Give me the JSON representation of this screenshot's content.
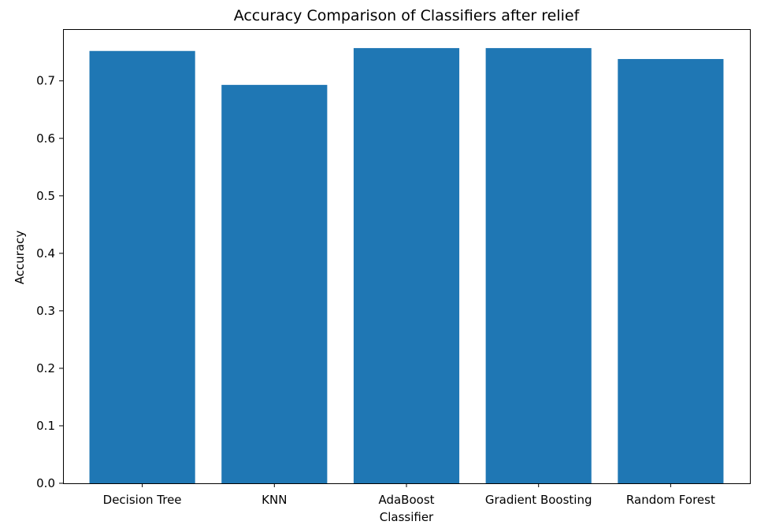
{
  "chart_data": {
    "type": "bar",
    "title": "Accuracy Comparison of Classifiers after relief",
    "xlabel": "Classifier",
    "ylabel": "Accuracy",
    "categories": [
      "Decision Tree",
      "KNN",
      "AdaBoost",
      "Gradient Boosting",
      "Random Forest"
    ],
    "values": [
      0.752,
      0.693,
      0.757,
      0.757,
      0.738
    ],
    "ylim": [
      0,
      0.79
    ],
    "yticks": [
      "0.0",
      "0.1",
      "0.2",
      "0.3",
      "0.4",
      "0.5",
      "0.6",
      "0.7"
    ],
    "bar_color": "#1f77b4",
    "grid": false,
    "legend": "none"
  }
}
